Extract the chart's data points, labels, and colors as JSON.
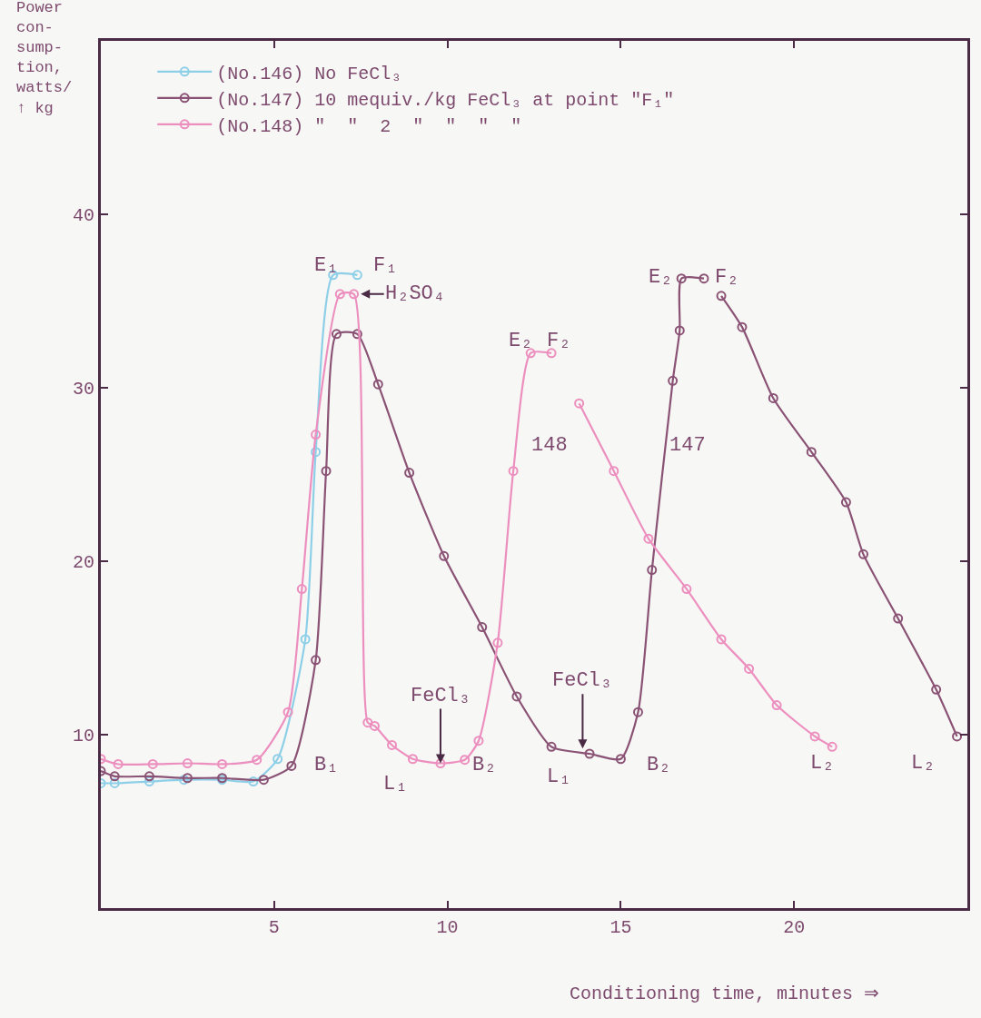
{
  "chart_data": {
    "type": "line",
    "xlabel": "Conditioning time, minutes ⇒",
    "ylabel": "Power\ncon-\nsump-\ntion,\nwatts/\n↑ kg",
    "xlim": [
      0,
      25
    ],
    "ylim": [
      0,
      50
    ],
    "xticks": [
      {
        "value": 0,
        "label": null
      },
      5,
      10,
      15,
      20
    ],
    "yticks": [
      10,
      20,
      30,
      40
    ],
    "grid": false,
    "legend": "top left",
    "marker": "circle",
    "line_style": "solid",
    "series": [
      {
        "name": "(No.146) No FeCl₃",
        "color": "#8ecfe8",
        "x": [
          0,
          0.4,
          1.4,
          2.4,
          3.5,
          4.4,
          5.1,
          5.9,
          6.2,
          6.7,
          7.4
        ],
        "values": [
          7.2,
          7.2,
          7.3,
          7.4,
          7.4,
          7.3,
          8.6,
          15.5,
          26.3,
          36.5,
          36.5
        ]
      },
      {
        "name": "(No.147) 10 mequiv./kg FeCl₃ at point \"F₁\"",
        "color": "#8a5274",
        "x": [
          0,
          0.4,
          1.4,
          2.5,
          3.5,
          4.7,
          5.5,
          6.2,
          6.5,
          6.8,
          7.4,
          8.0,
          8.9,
          9.9,
          11.0,
          12.0,
          13.0,
          14.1,
          15.0,
          15.5,
          15.9,
          16.5,
          16.7,
          16.75,
          17.4,
          17.6,
          17.9,
          18.5,
          19.4,
          20.5,
          21.5,
          22.0,
          23.0,
          24.1,
          24.7
        ],
        "values": [
          7.9,
          7.6,
          7.6,
          7.5,
          7.5,
          7.4,
          8.2,
          14.3,
          25.2,
          33.1,
          33.1,
          30.2,
          25.1,
          20.3,
          16.2,
          12.2,
          9.3,
          8.9,
          8.6,
          11.3,
          19.5,
          30.4,
          33.3,
          36.3,
          36.3,
          null,
          35.3,
          33.5,
          29.4,
          26.3,
          23.4,
          20.4,
          16.7,
          12.6,
          9.9
        ]
      },
      {
        "name": "(No.148) \"  \"  2  \"  \"  \"  \"",
        "color": "#ec8fbf",
        "x": [
          0,
          0.5,
          1.5,
          2.5,
          3.5,
          4.5,
          5.4,
          5.8,
          6.2,
          6.9,
          7.3,
          7.7,
          7.9,
          8.4,
          9.0,
          9.8,
          10.5,
          10.9,
          11.45,
          11.9,
          12.4,
          13.0,
          13.4,
          13.8,
          14.8,
          15.8,
          16.9,
          17.9,
          18.7,
          19.5,
          20.6,
          21.1
        ],
        "values": [
          8.6,
          8.3,
          8.3,
          8.35,
          8.3,
          8.55,
          11.3,
          18.4,
          27.3,
          35.4,
          35.4,
          10.7,
          10.5,
          9.4,
          8.6,
          8.35,
          8.55,
          9.65,
          15.3,
          25.2,
          32.0,
          32.0,
          null,
          29.1,
          25.2,
          21.3,
          18.4,
          15.5,
          13.8,
          11.7,
          9.9,
          9.3
        ]
      }
    ],
    "annotations": [
      "E₁",
      "F₁",
      "H₂SO₄",
      "E₂",
      "F₂",
      "148",
      "147",
      "E₂",
      "F₂",
      {
        "text": "FeCl₃",
        "x": 9.8,
        "y": 8.35
      },
      {
        "text": "FeCl₃",
        "x": 13.9,
        "y": 9.2
      },
      "B₁",
      "L₁",
      "B₂",
      "L₁",
      "B₂",
      "L₂",
      "L₂"
    ]
  }
}
